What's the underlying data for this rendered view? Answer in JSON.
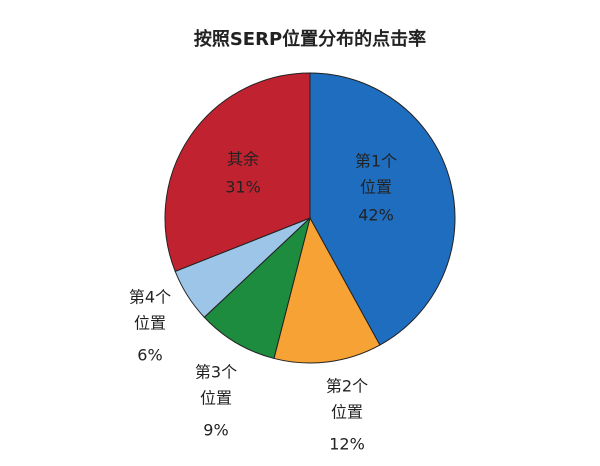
{
  "chart_data": {
    "type": "pie",
    "title": "按照SERP位置分布的点击率",
    "categories": [
      [
        "第1个",
        "位置"
      ],
      [
        "第2个",
        "位置"
      ],
      [
        "第3个",
        "位置"
      ],
      [
        "第4个",
        "位置"
      ],
      [
        "其余"
      ]
    ],
    "values": [
      42,
      12,
      9,
      6,
      31
    ],
    "value_labels": [
      "42%",
      "12%",
      "9%",
      "6%",
      "31%"
    ],
    "colors": [
      "#1f6dbf",
      "#f7a234",
      "#1d8c3f",
      "#9cc5e8",
      "#c0232f"
    ]
  }
}
